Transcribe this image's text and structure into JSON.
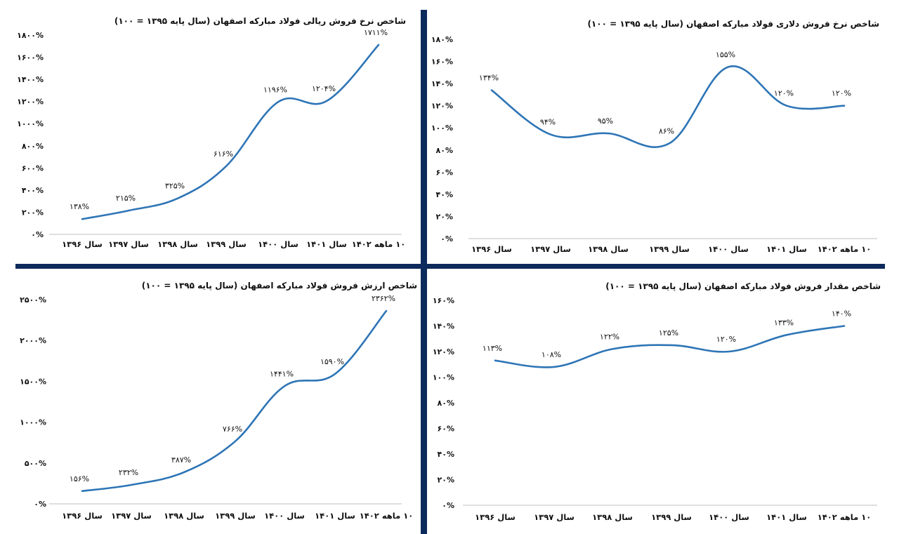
{
  "colors": {
    "line": "#2e75b6",
    "divider": "#0d2a5c",
    "text": "#111111",
    "axis": "#bfbfbf"
  },
  "chart_data": [
    {
      "type": "line",
      "title": "شاخص نرخ فروش ریالی فولاد مبارکه اصفهان (سال پایه ۱۳۹۵ = ۱۰۰)",
      "categories": [
        "سال ۱۳۹۶",
        "سال ۱۳۹۷",
        "سال ۱۳۹۸",
        "سال ۱۳۹۹",
        "سال ۱۴۰۰",
        "سال ۱۴۰۱",
        "۱۰ ماهه ۱۴۰۲"
      ],
      "values": [
        138,
        215,
        325,
        616,
        1196,
        1204,
        1711
      ],
      "data_labels": [
        "۱۳۸%",
        "۲۱۵%",
        "۳۲۵%",
        "۶۱۶%",
        "۱۱۹۶%",
        "۱۲۰۴%",
        "۱۷۱۱%"
      ],
      "yticks": [
        "۰%",
        "۲۰۰%",
        "۴۰۰%",
        "۶۰۰%",
        "۸۰۰%",
        "۱۰۰۰%",
        "۱۲۰۰%",
        "۱۴۰۰%",
        "۱۶۰۰%",
        "۱۸۰۰%"
      ],
      "ylim": [
        0,
        1800
      ],
      "grid": false
    },
    {
      "type": "line",
      "title": "شاخص نرخ فروش دلاری فولاد مبارکه اصفهان (سال پایه ۱۳۹۵ = ۱۰۰)",
      "categories": [
        "سال ۱۳۹۶",
        "سال ۱۳۹۷",
        "سال ۱۳۹۸",
        "سال ۱۳۹۹",
        "سال ۱۴۰۰",
        "سال ۱۴۰۱",
        "۱۰ ماهه ۱۴۰۲"
      ],
      "values": [
        134,
        94,
        95,
        86,
        155,
        120,
        120
      ],
      "data_labels": [
        "۱۳۴%",
        "۹۴%",
        "۹۵%",
        "۸۶%",
        "۱۵۵%",
        "۱۲۰%",
        "۱۲۰%"
      ],
      "yticks": [
        "۰%",
        "۲۰%",
        "۴۰%",
        "۶۰%",
        "۸۰%",
        "۱۰۰%",
        "۱۲۰%",
        "۱۴۰%",
        "۱۶۰%",
        "۱۸۰%"
      ],
      "ylim": [
        0,
        180
      ],
      "grid": false
    },
    {
      "type": "line",
      "title": "شاخص ارزش فروش فولاد مبارکه اصفهان (سال پایه ۱۳۹۵ = ۱۰۰)",
      "categories": [
        "سال ۱۳۹۶",
        "سال ۱۳۹۷",
        "سال ۱۳۹۸",
        "سال ۱۳۹۹",
        "سال ۱۴۰۰",
        "سال ۱۴۰۱",
        "۱۰ ماهه ۱۴۰۲"
      ],
      "values": [
        156,
        232,
        387,
        766,
        1441,
        1590,
        2362
      ],
      "data_labels": [
        "۱۵۶%",
        "۲۳۲%",
        "۳۸۷%",
        "۷۶۶%",
        "۱۴۴۱%",
        "۱۵۹۰%",
        "۲۳۶۲%"
      ],
      "yticks": [
        "۰%",
        "۵۰۰%",
        "۱۰۰۰%",
        "۱۵۰۰%",
        "۲۰۰۰%",
        "۲۵۰۰%"
      ],
      "ylim": [
        0,
        2500
      ],
      "grid": false
    },
    {
      "type": "line",
      "title": "شاخص مقدار فروش فولاد مبارکه اصفهان (سال پایه ۱۳۹۵ = ۱۰۰)",
      "categories": [
        "سال ۱۳۹۶",
        "سال ۱۳۹۷",
        "سال ۱۳۹۸",
        "سال ۱۳۹۹",
        "سال ۱۴۰۰",
        "سال ۱۴۰۱",
        "۱۰ ماهه ۱۴۰۲"
      ],
      "values": [
        113,
        108,
        122,
        125,
        120,
        133,
        140
      ],
      "data_labels": [
        "۱۱۳%",
        "۱۰۸%",
        "۱۲۲%",
        "۱۲۵%",
        "۱۲۰%",
        "۱۳۳%",
        "۱۴۰%"
      ],
      "yticks": [
        "۰%",
        "۲۰%",
        "۴۰%",
        "۶۰%",
        "۸۰%",
        "۱۰۰%",
        "۱۲۰%",
        "۱۴۰%",
        "۱۶۰%"
      ],
      "ylim": [
        0,
        160
      ],
      "grid": false
    }
  ]
}
